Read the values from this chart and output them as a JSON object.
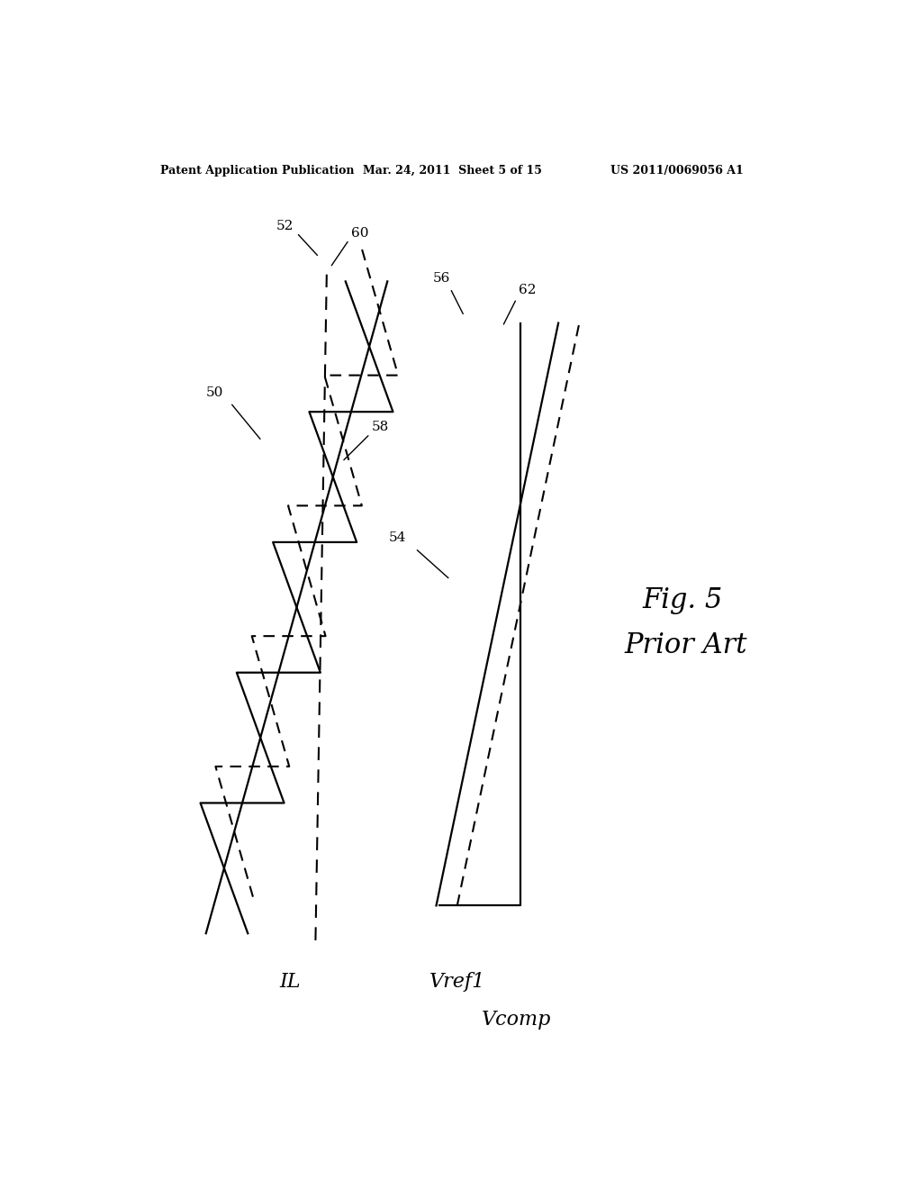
{
  "bg_color": "#ffffff",
  "header_left": "Patent Application Publication",
  "header_mid": "Mar. 24, 2011  Sheet 5 of 15",
  "header_right": "US 2011/0069056 A1",
  "fig_label": "Fig. 5",
  "fig_sublabel": "Prior Art",
  "label_IL": "IL",
  "label_Vref1": "Vref1",
  "label_Vcomp": "Vcomp",
  "ref_50": "50",
  "ref_52": "52",
  "ref_54": "54",
  "ref_56": "56",
  "ref_58": "58",
  "ref_60": "60",
  "ref_62": "62"
}
